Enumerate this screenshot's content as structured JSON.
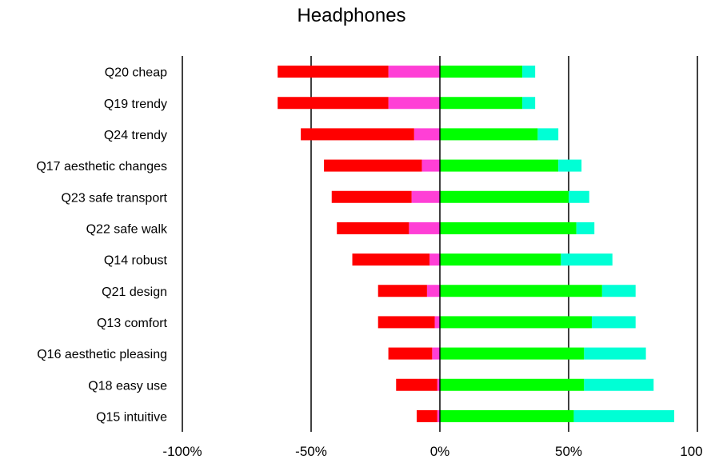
{
  "chart_data": {
    "type": "bar",
    "stacked": "diverging",
    "title": "Headphones",
    "xlabel": "",
    "ylabel": "",
    "xlim": [
      -100,
      100
    ],
    "x_ticks": [
      "-100%",
      "-50%",
      "0%",
      "50%",
      "100%"
    ],
    "x_tick_values": [
      -100,
      -50,
      0,
      50,
      100
    ],
    "grid": "vertical lines at -100, -50, 0, 50, 100",
    "legend": "none",
    "categories": [
      "Q20 cheap",
      "Q19 trendy",
      "Q24 trendy",
      "Q17 aesthetic changes",
      "Q23 safe transport",
      "Q22 safe walk",
      "Q14 robust",
      "Q21 design",
      "Q13 comfort",
      "Q16 aesthetic pleasing",
      "Q18 easy use",
      "Q15 intuitive"
    ],
    "series": [
      {
        "color": "#ff3fd6",
        "values": [
          -20,
          -20,
          -10,
          -7,
          -11,
          -12,
          -4,
          -5,
          -2,
          -3,
          -1,
          -1
        ]
      },
      {
        "color": "#ff0000",
        "values": [
          -43,
          -43,
          -44,
          -38,
          -31,
          -28,
          -30,
          -19,
          -22,
          -17,
          -16,
          -8
        ]
      },
      {
        "color": "#00ff00",
        "values": [
          32,
          32,
          38,
          46,
          50,
          53,
          47,
          63,
          59,
          56,
          56,
          52
        ]
      },
      {
        "color": "#00ffd5",
        "values": [
          5,
          5,
          8,
          9,
          8,
          7,
          20,
          13,
          17,
          24,
          27,
          39
        ]
      }
    ]
  }
}
